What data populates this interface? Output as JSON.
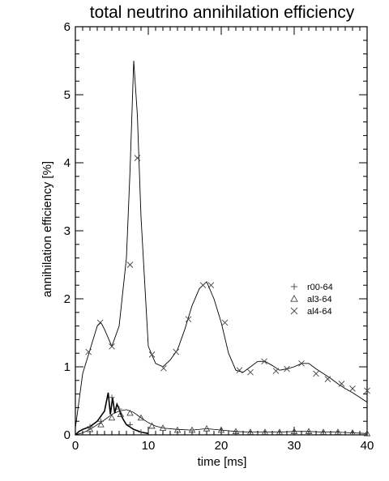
{
  "chart_data": {
    "type": "line",
    "title": "total neutrino annihilation efficiency",
    "xlabel": "time [ms]",
    "ylabel": "annihilation efficiency [%]",
    "xlim": [
      0,
      40
    ],
    "ylim": [
      0,
      6
    ],
    "xticks": [
      0,
      10,
      20,
      30,
      40
    ],
    "yticks": [
      0,
      1,
      2,
      3,
      4,
      5,
      6
    ],
    "legend_position": "right",
    "series": [
      {
        "name": "r00-64",
        "marker": "plus",
        "color": "#000000",
        "x": [
          0,
          0.5,
          1,
          2,
          3,
          4,
          4.5,
          4.8,
          5.1,
          5.4,
          5.7,
          6.0,
          6.3,
          6.6,
          7,
          8,
          9,
          10
        ],
        "y": [
          0,
          0.05,
          0.08,
          0.12,
          0.2,
          0.35,
          0.62,
          0.3,
          0.55,
          0.32,
          0.45,
          0.38,
          0.28,
          0.22,
          0.15,
          0.08,
          0.04,
          0.02
        ]
      },
      {
        "name": "al3-64",
        "marker": "triangle",
        "color": "#000000",
        "x": [
          0,
          1,
          2,
          3,
          4,
          5,
          6,
          7,
          8,
          9,
          10,
          11,
          12,
          14,
          16,
          18,
          20,
          22,
          24,
          26,
          28,
          30,
          32,
          34,
          36,
          38,
          40
        ],
        "y": [
          0,
          0.03,
          0.08,
          0.15,
          0.22,
          0.3,
          0.35,
          0.37,
          0.33,
          0.25,
          0.18,
          0.13,
          0.1,
          0.08,
          0.07,
          0.09,
          0.07,
          0.05,
          0.04,
          0.04,
          0.04,
          0.05,
          0.05,
          0.04,
          0.04,
          0.03,
          0.02
        ]
      },
      {
        "name": "al4-64",
        "marker": "x",
        "color": "#000000",
        "x": [
          0,
          0.5,
          1,
          2,
          3,
          3.5,
          4,
          5,
          6,
          7,
          7.5,
          8,
          8.5,
          9,
          10,
          11,
          12,
          13,
          14,
          15,
          16,
          17,
          18,
          19,
          20,
          21,
          22,
          23,
          24,
          25,
          26,
          27,
          28,
          29,
          30,
          31,
          32,
          33,
          34,
          35,
          36,
          37,
          38,
          39,
          40
        ],
        "y": [
          0.1,
          0.5,
          0.9,
          1.25,
          1.6,
          1.65,
          1.55,
          1.3,
          1.6,
          2.6,
          3.9,
          5.5,
          4.7,
          3.2,
          1.3,
          1.05,
          1.0,
          1.1,
          1.25,
          1.55,
          1.9,
          2.15,
          2.25,
          2.0,
          1.65,
          1.2,
          0.95,
          0.92,
          1.0,
          1.08,
          1.08,
          1.02,
          0.95,
          0.97,
          1.0,
          1.05,
          1.05,
          0.97,
          0.9,
          0.83,
          0.75,
          0.68,
          0.62,
          0.55,
          0.48
        ]
      }
    ],
    "markers": [
      {
        "series": 2,
        "x": [
          1.8,
          3.4,
          5.0,
          7.5,
          8.5,
          10.5,
          12.1,
          13.8,
          15.5,
          17.5,
          18.6,
          20.5,
          22.5,
          24.0,
          25.9,
          27.5,
          29.0,
          31.0,
          33.0,
          34.6,
          36.5,
          38.0,
          40.0
        ],
        "y": [
          1.22,
          1.65,
          1.3,
          2.5,
          4.07,
          1.18,
          0.98,
          1.22,
          1.7,
          2.2,
          2.2,
          1.65,
          0.95,
          0.92,
          1.08,
          0.94,
          0.97,
          1.05,
          0.9,
          0.82,
          0.75,
          0.68,
          0.65
        ]
      },
      {
        "series": 1,
        "x": [
          2.0,
          3.5,
          5.0,
          6.2,
          7.5,
          9.0,
          10.5,
          12.0,
          14.0,
          16.0,
          18.0,
          20.0,
          22.0,
          24.0,
          26.0,
          28.0,
          30.0,
          32.0,
          34.0,
          36.0,
          38.0,
          40.0
        ],
        "y": [
          0.08,
          0.15,
          0.25,
          0.3,
          0.32,
          0.25,
          0.13,
          0.1,
          0.07,
          0.07,
          0.09,
          0.07,
          0.05,
          0.04,
          0.04,
          0.04,
          0.05,
          0.05,
          0.04,
          0.04,
          0.03,
          0.02
        ]
      },
      {
        "series": 0,
        "x": [
          2.0,
          3.5,
          5.0,
          6.0,
          7.5,
          9.0
        ],
        "y": [
          0.12,
          0.2,
          0.55,
          0.38,
          0.15,
          0.04
        ]
      }
    ]
  }
}
